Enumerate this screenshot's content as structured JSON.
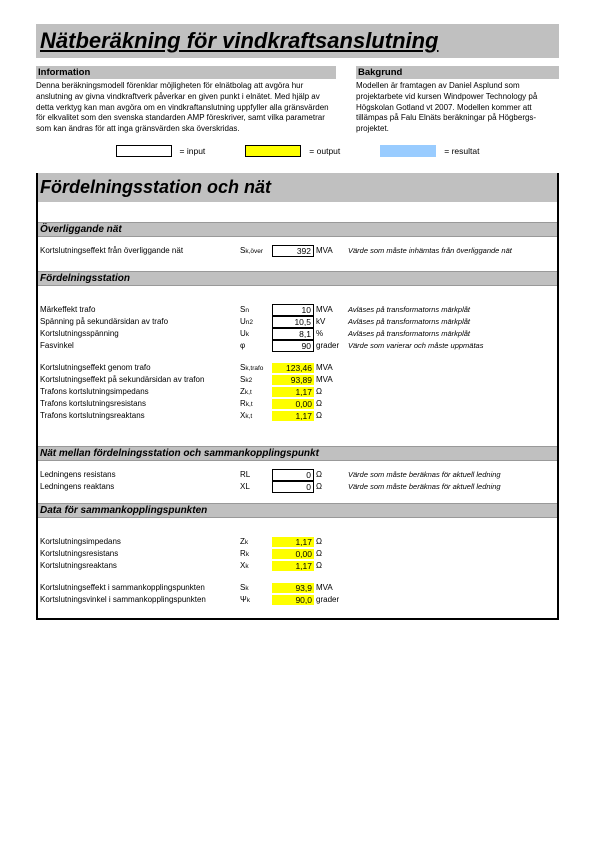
{
  "colors": {
    "grey": "#c0c0c0",
    "yellow": "#feff00",
    "blue": "#99ccff"
  },
  "title": "Nätberäkning för vindkraftsanslutning",
  "info": {
    "heading": "Information",
    "body": "Denna beräkningsmodell förenklar möjligheten för elnätbolag att avgöra hur anslutning av givna vindkraftverk påverkar en given punkt i elnätet. Med hjälp av detta verktyg kan man avgöra om en vindkraftanslutning uppfyller alla gränsvärden för elkvalitet som den svenska standarden AMP föreskriver, samt vilka parametrar som kan ändras för att inga gränsvärden ska överskridas."
  },
  "background": {
    "heading": "Bakgrund",
    "body": "Modellen är framtagen av Daniel Asplund som projektarbete vid kursen Windpower Technology på Högskolan Gotland vt 2007. Modellen kommer att tillämpas på Falu Elnäts beräkningar på Högbergs-projektet."
  },
  "legend": {
    "input": "= input",
    "output": "= output",
    "result": "= resultat"
  },
  "section": "Fördelningsstation och nät",
  "overliggande": {
    "heading": "Överliggande nät",
    "rows": [
      {
        "label": "Kortslutningseffekt från överliggande nät",
        "sym": "Sk,över",
        "val": "392",
        "unit": "MVA",
        "type": "in",
        "note": "Värde som måste inhämtas från överliggande nät"
      }
    ]
  },
  "fordel": {
    "heading": "Fördelningsstation",
    "group1": [
      {
        "label": "Märkeffekt trafo",
        "sym": "Sn",
        "val": "10",
        "unit": "MVA",
        "type": "in",
        "note": "Avläses på transformatorns märkplåt"
      },
      {
        "label": "Spänning på sekundärsidan av trafo",
        "sym": "Un2",
        "val": "10,5",
        "unit": "kV",
        "type": "in",
        "note": "Avläses på transformatorns märkplåt"
      },
      {
        "label": "Kortslutningsspänning",
        "sym": "Uk",
        "val": "8,1",
        "unit": "%",
        "type": "in",
        "note": "Avläses på transformatorns märkplåt"
      },
      {
        "label": "Fasvinkel",
        "sym": "φ",
        "val": "90",
        "unit": "grader",
        "type": "in",
        "note": "Värde som varierar och måste uppmätas"
      }
    ],
    "group2": [
      {
        "label": "Kortslutningseffekt genom trafo",
        "sym": "Sk,trafo",
        "val": "123,46",
        "unit": "MVA",
        "type": "out",
        "note": ""
      },
      {
        "label": "Kortslutningseffekt på sekundärsidan av trafon",
        "sym": "Sk2",
        "val": "93,89",
        "unit": "MVA",
        "type": "out",
        "note": ""
      },
      {
        "label": "Trafons kortslutningsimpedans",
        "sym": "Zk,t",
        "val": "1,17",
        "unit": "Ω",
        "type": "out",
        "note": ""
      },
      {
        "label": "Trafons kortslutningsresistans",
        "sym": "Rk,t",
        "val": "0,00",
        "unit": "Ω",
        "type": "out",
        "note": ""
      },
      {
        "label": "Trafons kortslutningsreaktans",
        "sym": "Xk,t",
        "val": "1,17",
        "unit": "Ω",
        "type": "out",
        "note": ""
      }
    ]
  },
  "nat": {
    "heading": "Nät mellan fördelningsstation och sammankopplingspunkt",
    "rows": [
      {
        "label": "Ledningens resistans",
        "sym": "RL",
        "val": "0",
        "unit": "Ω",
        "type": "in",
        "note": "Värde som måste beräknas för aktuell ledning"
      },
      {
        "label": "Ledningens reaktans",
        "sym": "XL",
        "val": "0",
        "unit": "Ω",
        "type": "in",
        "note": "Värde som måste beräknas för aktuell ledning"
      }
    ]
  },
  "datakopp": {
    "heading": "Data för sammankopplingspunkten",
    "group1": [
      {
        "label": "Kortslutningsimpedans",
        "sym": "Zk",
        "val": "1,17",
        "unit": "Ω",
        "type": "out",
        "note": ""
      },
      {
        "label": "Kortslutningsresistans",
        "sym": "Rk",
        "val": "0,00",
        "unit": "Ω",
        "type": "out",
        "note": ""
      },
      {
        "label": "Kortslutningsreaktans",
        "sym": "Xk",
        "val": "1,17",
        "unit": "Ω",
        "type": "out",
        "note": ""
      }
    ],
    "group2": [
      {
        "label": "Kortslutningseffekt i sammankopplingspunkten",
        "sym": "Sk",
        "val": "93,9",
        "unit": "MVA",
        "type": "out",
        "note": ""
      },
      {
        "label": "Kortslutningsvinkel i sammankopplingspunkten",
        "sym": "Ψk",
        "val": "90,0",
        "unit": "grader",
        "type": "out",
        "note": ""
      }
    ]
  }
}
